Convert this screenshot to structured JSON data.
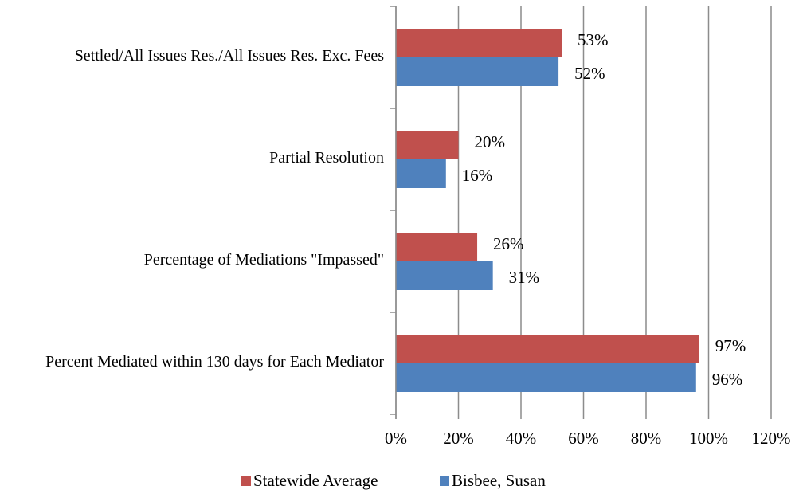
{
  "chart_data": {
    "type": "hbar",
    "categories": [
      "Settled/All Issues Res./All Issues Res. Exc. Fees",
      "Partial Resolution",
      "Percentage of Mediations \"Impassed\"",
      "Percent Mediated within 130 days for Each Mediator"
    ],
    "series": [
      {
        "name": "Statewide Average",
        "color": "#c0504d",
        "values": [
          53,
          20,
          26,
          97
        ],
        "value_labels": [
          "53%",
          "20%",
          "26%",
          "97%"
        ]
      },
      {
        "name": "Bisbee, Susan",
        "color": "#4f81bd",
        "values": [
          52,
          16,
          31,
          96
        ],
        "value_labels": [
          "52%",
          "16%",
          "31%",
          "96%"
        ]
      }
    ],
    "xlim": [
      0,
      120
    ],
    "xticks": [
      {
        "value": 0,
        "label": "0%"
      },
      {
        "value": 20,
        "label": "20%"
      },
      {
        "value": 40,
        "label": "40%"
      },
      {
        "value": 60,
        "label": "60%"
      },
      {
        "value": 80,
        "label": "80%"
      },
      {
        "value": 100,
        "label": "100%"
      },
      {
        "value": 120,
        "label": "120%"
      }
    ],
    "grid": true,
    "legend": "bottom"
  }
}
